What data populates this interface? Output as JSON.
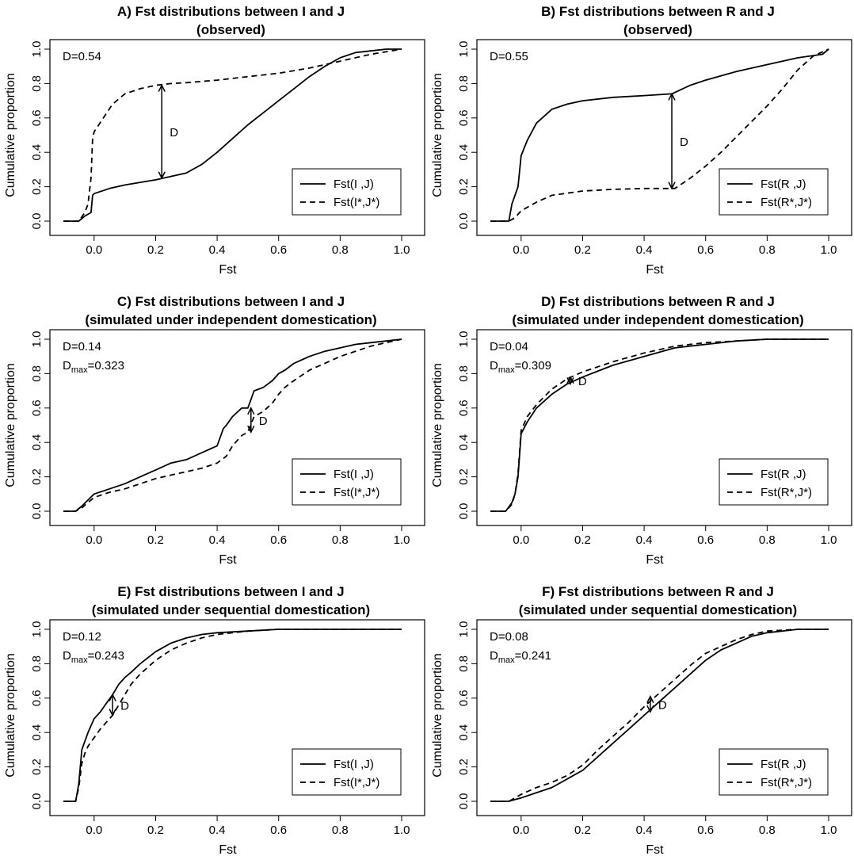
{
  "chart_data": [
    {
      "type": "line",
      "title": "A) Fst distributions between I and J",
      "subtitle": "(observed)",
      "xlabel": "Fst",
      "ylabel": "Cumulative proportion",
      "xlim": [
        -0.1,
        1.0
      ],
      "ylim": [
        0.0,
        1.0
      ],
      "xticks": [
        "0.0",
        "0.2",
        "0.4",
        "0.6",
        "0.8",
        "1.0"
      ],
      "yticks": [
        "0.0",
        "0.2",
        "0.4",
        "0.6",
        "0.8",
        "1.0"
      ],
      "grid": false,
      "legend_position": "bottom-right",
      "annotation": {
        "D": "D=0.54",
        "Dmax": null,
        "label": "D"
      },
      "d_arrow": {
        "x": 0.22,
        "y_low": 0.25,
        "y_high": 0.79
      },
      "series": [
        {
          "name": "Fst(I ,J)",
          "style": "solid",
          "x": [
            -0.1,
            -0.05,
            -0.03,
            -0.01,
            -0.005,
            0.0,
            0.05,
            0.1,
            0.2,
            0.3,
            0.35,
            0.4,
            0.45,
            0.5,
            0.55,
            0.6,
            0.65,
            0.7,
            0.75,
            0.8,
            0.85,
            0.9,
            0.95,
            1.0
          ],
          "y": [
            0.0,
            0.0,
            0.03,
            0.05,
            0.15,
            0.16,
            0.19,
            0.21,
            0.24,
            0.28,
            0.33,
            0.4,
            0.48,
            0.56,
            0.63,
            0.7,
            0.77,
            0.84,
            0.9,
            0.95,
            0.98,
            0.99,
            1.0,
            1.0
          ]
        },
        {
          "name": "Fst(I*,J*)",
          "style": "dashed",
          "x": [
            -0.1,
            -0.05,
            -0.03,
            -0.02,
            -0.01,
            -0.005,
            0.0,
            0.03,
            0.06,
            0.1,
            0.15,
            0.2,
            0.25,
            0.3,
            0.4,
            0.5,
            0.6,
            0.7,
            0.8,
            0.9,
            1.0
          ],
          "y": [
            0.0,
            0.0,
            0.05,
            0.1,
            0.25,
            0.48,
            0.52,
            0.6,
            0.68,
            0.74,
            0.77,
            0.79,
            0.8,
            0.805,
            0.82,
            0.84,
            0.86,
            0.89,
            0.93,
            0.97,
            1.0
          ]
        }
      ]
    },
    {
      "type": "line",
      "title": "B) Fst distributions between R and J",
      "subtitle": "(observed)",
      "xlabel": "Fst",
      "ylabel": "Cumulative proportion",
      "xlim": [
        -0.1,
        1.0
      ],
      "ylim": [
        0.0,
        1.0
      ],
      "xticks": [
        "0.0",
        "0.2",
        "0.4",
        "0.6",
        "0.8",
        "1.0"
      ],
      "yticks": [
        "0.0",
        "0.2",
        "0.4",
        "0.6",
        "0.8",
        "1.0"
      ],
      "grid": false,
      "legend_position": "bottom-right",
      "annotation": {
        "D": "D=0.55",
        "Dmax": null,
        "label": "D"
      },
      "d_arrow": {
        "x": 0.49,
        "y_low": 0.19,
        "y_high": 0.74
      },
      "series": [
        {
          "name": "Fst(R ,J)",
          "style": "solid",
          "x": [
            -0.1,
            -0.04,
            -0.03,
            -0.02,
            -0.01,
            0.0,
            0.02,
            0.05,
            0.1,
            0.15,
            0.2,
            0.3,
            0.4,
            0.49,
            0.55,
            0.6,
            0.7,
            0.8,
            0.9,
            0.98,
            1.0
          ],
          "y": [
            0.0,
            0.0,
            0.1,
            0.15,
            0.2,
            0.38,
            0.47,
            0.57,
            0.65,
            0.68,
            0.7,
            0.72,
            0.73,
            0.74,
            0.79,
            0.82,
            0.87,
            0.91,
            0.95,
            0.97,
            1.0
          ]
        },
        {
          "name": "Fst(R*,J*)",
          "style": "dashed",
          "x": [
            -0.1,
            -0.04,
            -0.02,
            0.0,
            0.05,
            0.1,
            0.2,
            0.3,
            0.4,
            0.48,
            0.5,
            0.55,
            0.6,
            0.65,
            0.7,
            0.75,
            0.8,
            0.85,
            0.9,
            0.95,
            1.0
          ],
          "y": [
            0.0,
            0.0,
            0.02,
            0.06,
            0.11,
            0.15,
            0.175,
            0.185,
            0.19,
            0.19,
            0.19,
            0.25,
            0.32,
            0.4,
            0.49,
            0.58,
            0.67,
            0.77,
            0.88,
            0.96,
            1.0
          ]
        }
      ]
    },
    {
      "type": "line",
      "title": "C) Fst distributions between I and J",
      "subtitle": "(simulated under independent domestication)",
      "xlabel": "Fst",
      "ylabel": "Cumulative proportion",
      "xlim": [
        -0.1,
        1.0
      ],
      "ylim": [
        0.0,
        1.0
      ],
      "xticks": [
        "0.0",
        "0.2",
        "0.4",
        "0.6",
        "0.8",
        "1.0"
      ],
      "yticks": [
        "0.0",
        "0.2",
        "0.4",
        "0.6",
        "0.8",
        "1.0"
      ],
      "grid": false,
      "legend_position": "bottom-right",
      "annotation": {
        "D": "D=0.14",
        "Dmax": "=0.323",
        "label": "D"
      },
      "d_arrow": {
        "x": 0.51,
        "y_low": 0.46,
        "y_high": 0.6
      },
      "series": [
        {
          "name": "Fst(I ,J)",
          "style": "solid",
          "x": [
            -0.1,
            -0.06,
            -0.04,
            0.0,
            0.05,
            0.1,
            0.15,
            0.2,
            0.25,
            0.3,
            0.35,
            0.4,
            0.42,
            0.43,
            0.45,
            0.48,
            0.5,
            0.52,
            0.55,
            0.58,
            0.6,
            0.62,
            0.65,
            0.7,
            0.75,
            0.8,
            0.85,
            0.9,
            0.95,
            1.0
          ],
          "y": [
            0.0,
            0.0,
            0.03,
            0.1,
            0.13,
            0.16,
            0.2,
            0.24,
            0.28,
            0.3,
            0.34,
            0.38,
            0.48,
            0.5,
            0.55,
            0.6,
            0.6,
            0.7,
            0.72,
            0.76,
            0.8,
            0.82,
            0.86,
            0.9,
            0.93,
            0.95,
            0.97,
            0.98,
            0.99,
            1.0
          ]
        },
        {
          "name": "Fst(I*,J*)",
          "style": "dashed",
          "x": [
            -0.1,
            -0.06,
            -0.04,
            0.0,
            0.05,
            0.1,
            0.15,
            0.2,
            0.25,
            0.3,
            0.35,
            0.4,
            0.43,
            0.45,
            0.48,
            0.5,
            0.52,
            0.55,
            0.58,
            0.6,
            0.62,
            0.65,
            0.7,
            0.75,
            0.8,
            0.85,
            0.9,
            0.95,
            1.0
          ],
          "y": [
            0.0,
            0.0,
            0.02,
            0.08,
            0.11,
            0.13,
            0.16,
            0.19,
            0.21,
            0.23,
            0.25,
            0.28,
            0.32,
            0.38,
            0.44,
            0.46,
            0.55,
            0.58,
            0.63,
            0.68,
            0.72,
            0.76,
            0.82,
            0.86,
            0.9,
            0.93,
            0.96,
            0.98,
            1.0
          ]
        }
      ]
    },
    {
      "type": "line",
      "title": "D) Fst distributions between R and J",
      "subtitle": "(simulated under independent domestication)",
      "xlabel": "Fst",
      "ylabel": "Cumulative proportion",
      "xlim": [
        -0.1,
        1.0
      ],
      "ylim": [
        0.0,
        1.0
      ],
      "xticks": [
        "0.0",
        "0.2",
        "0.4",
        "0.6",
        "0.8",
        "1.0"
      ],
      "yticks": [
        "0.0",
        "0.2",
        "0.4",
        "0.6",
        "0.8",
        "1.0"
      ],
      "grid": false,
      "legend_position": "bottom-right",
      "annotation": {
        "D": "D=0.04",
        "Dmax": "=0.309",
        "label": "D"
      },
      "d_arrow": {
        "x": 0.16,
        "y_low": 0.74,
        "y_high": 0.78
      },
      "series": [
        {
          "name": "Fst(R ,J)",
          "style": "solid",
          "x": [
            -0.1,
            -0.05,
            -0.03,
            -0.02,
            -0.01,
            0.0,
            0.02,
            0.05,
            0.1,
            0.15,
            0.2,
            0.3,
            0.4,
            0.5,
            0.6,
            0.7,
            0.8,
            0.9,
            1.0
          ],
          "y": [
            0.0,
            0.0,
            0.05,
            0.1,
            0.2,
            0.45,
            0.52,
            0.6,
            0.68,
            0.74,
            0.78,
            0.85,
            0.9,
            0.95,
            0.97,
            0.99,
            1.0,
            1.0,
            1.0
          ]
        },
        {
          "name": "Fst(R*,J*)",
          "style": "dashed",
          "x": [
            -0.1,
            -0.05,
            -0.03,
            -0.02,
            -0.01,
            0.0,
            0.02,
            0.05,
            0.1,
            0.15,
            0.2,
            0.3,
            0.4,
            0.5,
            0.6,
            0.7,
            0.8,
            0.9,
            1.0
          ],
          "y": [
            0.0,
            0.0,
            0.04,
            0.1,
            0.22,
            0.47,
            0.55,
            0.62,
            0.71,
            0.77,
            0.81,
            0.87,
            0.92,
            0.96,
            0.98,
            0.99,
            1.0,
            1.0,
            1.0
          ]
        }
      ]
    },
    {
      "type": "line",
      "title": "E) Fst distributions between I and J",
      "subtitle": "(simulated under sequential domestication)",
      "xlabel": "Fst",
      "ylabel": "Cumulative proportion",
      "xlim": [
        -0.1,
        1.0
      ],
      "ylim": [
        0.0,
        1.0
      ],
      "xticks": [
        "0.0",
        "0.2",
        "0.4",
        "0.6",
        "0.8",
        "1.0"
      ],
      "yticks": [
        "0.0",
        "0.2",
        "0.4",
        "0.6",
        "0.8",
        "1.0"
      ],
      "grid": false,
      "legend_position": "bottom-right",
      "annotation": {
        "D": "D=0.12",
        "Dmax": "=0.243",
        "label": "D"
      },
      "d_arrow": {
        "x": 0.06,
        "y_low": 0.5,
        "y_high": 0.62
      },
      "series": [
        {
          "name": "Fst(I ,J)",
          "style": "solid",
          "x": [
            -0.1,
            -0.06,
            -0.05,
            -0.04,
            -0.03,
            -0.02,
            0.0,
            0.02,
            0.04,
            0.06,
            0.08,
            0.1,
            0.12,
            0.15,
            0.2,
            0.25,
            0.3,
            0.35,
            0.4,
            0.5,
            0.6,
            0.8,
            1.0
          ],
          "y": [
            0.0,
            0.0,
            0.1,
            0.3,
            0.35,
            0.4,
            0.48,
            0.52,
            0.57,
            0.62,
            0.68,
            0.72,
            0.75,
            0.8,
            0.87,
            0.92,
            0.95,
            0.97,
            0.98,
            0.99,
            1.0,
            1.0,
            1.0
          ]
        },
        {
          "name": "Fst(I*,J*)",
          "style": "dashed",
          "x": [
            -0.1,
            -0.06,
            -0.05,
            -0.04,
            -0.03,
            -0.02,
            0.0,
            0.02,
            0.04,
            0.06,
            0.08,
            0.1,
            0.12,
            0.15,
            0.2,
            0.25,
            0.3,
            0.35,
            0.4,
            0.5,
            0.6,
            0.8,
            1.0
          ],
          "y": [
            0.0,
            0.0,
            0.08,
            0.22,
            0.28,
            0.32,
            0.37,
            0.42,
            0.46,
            0.5,
            0.56,
            0.62,
            0.68,
            0.74,
            0.82,
            0.88,
            0.92,
            0.95,
            0.97,
            0.99,
            1.0,
            1.0,
            1.0
          ]
        }
      ]
    },
    {
      "type": "line",
      "title": "F) Fst distributions between R and J",
      "subtitle": "(simulated under sequential domestication)",
      "xlabel": "Fst",
      "ylabel": "Cumulative proportion",
      "xlim": [
        -0.1,
        1.0
      ],
      "ylim": [
        0.0,
        1.0
      ],
      "xticks": [
        "0.0",
        "0.2",
        "0.4",
        "0.6",
        "0.8",
        "1.0"
      ],
      "yticks": [
        "0.0",
        "0.2",
        "0.4",
        "0.6",
        "0.8",
        "1.0"
      ],
      "grid": false,
      "legend_position": "bottom-right",
      "annotation": {
        "D": "D=0.08",
        "Dmax": "=0.241",
        "label": "D"
      },
      "d_arrow": {
        "x": 0.42,
        "y_low": 0.52,
        "y_high": 0.61
      },
      "series": [
        {
          "name": "Fst(R ,J)",
          "style": "solid",
          "x": [
            -0.1,
            -0.04,
            -0.02,
            0.0,
            0.05,
            0.1,
            0.15,
            0.2,
            0.25,
            0.3,
            0.35,
            0.4,
            0.45,
            0.5,
            0.55,
            0.6,
            0.65,
            0.7,
            0.75,
            0.8,
            0.9,
            1.0
          ],
          "y": [
            0.0,
            0.0,
            0.01,
            0.02,
            0.05,
            0.08,
            0.13,
            0.18,
            0.26,
            0.34,
            0.42,
            0.5,
            0.58,
            0.66,
            0.74,
            0.82,
            0.88,
            0.92,
            0.96,
            0.98,
            1.0,
            1.0
          ]
        },
        {
          "name": "Fst(R*,J*)",
          "style": "dashed",
          "x": [
            -0.1,
            -0.04,
            -0.02,
            0.0,
            0.05,
            0.1,
            0.15,
            0.2,
            0.25,
            0.3,
            0.35,
            0.4,
            0.45,
            0.5,
            0.55,
            0.6,
            0.65,
            0.7,
            0.75,
            0.8,
            0.9,
            1.0
          ],
          "y": [
            0.0,
            0.0,
            0.02,
            0.04,
            0.08,
            0.11,
            0.15,
            0.21,
            0.3,
            0.38,
            0.46,
            0.55,
            0.63,
            0.71,
            0.79,
            0.86,
            0.9,
            0.94,
            0.97,
            0.99,
            1.0,
            1.0
          ]
        }
      ]
    }
  ]
}
